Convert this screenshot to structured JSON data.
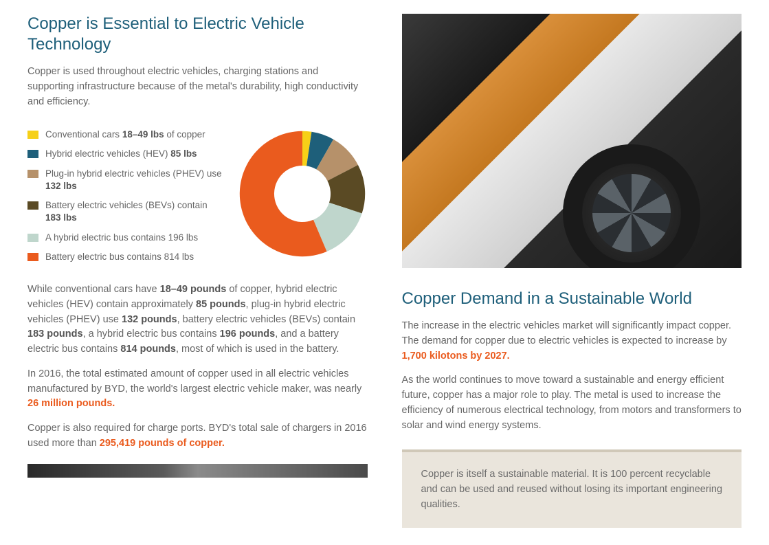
{
  "left": {
    "heading": "Copper is Essential to Electric Vehicle Technology",
    "intro": "Copper is used throughout electric vehicles, charging stations and supporting infrastructure because of the metal's durability, high conductivity and efficiency.",
    "chart": {
      "donut_inner_ratio": 0.45,
      "items": [
        {
          "label_pre": "Conventional cars ",
          "label_bold": "18–49 lbs",
          "label_post": " of copper",
          "value": 34,
          "color": "#f6d018"
        },
        {
          "label_pre": "Hybrid electric vehicles (HEV) ",
          "label_bold": "85 lbs",
          "label_post": "",
          "value": 85,
          "color": "#1e5f7a"
        },
        {
          "label_pre": "Plug-in hybrid electric vehicles (PHEV) use ",
          "label_bold": "132 lbs",
          "label_post": "",
          "value": 132,
          "color": "#b6916a"
        },
        {
          "label_pre": "Battery electric vehicles (BEVs) contain ",
          "label_bold": "183 lbs",
          "label_post": "",
          "value": 183,
          "color": "#5a4a24"
        },
        {
          "label_pre": "A hybrid electric bus contains 196 lbs",
          "label_bold": "",
          "label_post": "",
          "value": 196,
          "color": "#bfd6cc"
        },
        {
          "label_pre": "Battery electric bus contains 814 lbs",
          "label_bold": "",
          "label_post": "",
          "value": 814,
          "color": "#ea5b1e"
        }
      ]
    },
    "para1_parts": [
      {
        "t": "While conventional cars have "
      },
      {
        "t": "18–49 pounds",
        "cls": "bold"
      },
      {
        "t": " of copper, hybrid electric vehicles (HEV) contain approximately "
      },
      {
        "t": "85 pounds",
        "cls": "bold"
      },
      {
        "t": ", plug-in hybrid electric vehicles (PHEV) use "
      },
      {
        "t": "132 pounds",
        "cls": "bold"
      },
      {
        "t": ", battery electric vehicles (BEVs) contain "
      },
      {
        "t": "183 pounds",
        "cls": "bold"
      },
      {
        "t": ", a hybrid electric bus contains "
      },
      {
        "t": "196 pounds",
        "cls": "bold"
      },
      {
        "t": ", and a battery electric bus contains "
      },
      {
        "t": "814 pounds",
        "cls": "bold"
      },
      {
        "t": ", most of which is used in the battery."
      }
    ],
    "para2_parts": [
      {
        "t": "In 2016, the total estimated amount of copper used in all electric vehicles manufactured by BYD, the world's largest electric vehicle maker, was nearly "
      },
      {
        "t": "26 million pounds.",
        "cls": "orange"
      }
    ],
    "para3_parts": [
      {
        "t": "Copper is also required for charge ports. BYD's total sale of chargers in 2016 used more than "
      },
      {
        "t": "295,419 pounds of copper.",
        "cls": "orange"
      }
    ]
  },
  "right": {
    "heading": "Copper Demand in a Sustainable World",
    "para1_parts": [
      {
        "t": "The increase in the electric vehicles market will significantly impact copper. The demand for copper due to electric vehicles is expected to increase by "
      },
      {
        "t": "1,700 kilotons by 2027.",
        "cls": "orange"
      }
    ],
    "para2": "As the world continues to move toward a sustainable and energy efficient future, copper has a major role to play. The metal is used to increase the efficiency of numerous electrical technology, from motors and transformers to solar and wind energy systems.",
    "callout": "Copper is itself a sustainable material. It is 100 percent recyclable and can be used and reused without losing its important engineering qualities."
  }
}
